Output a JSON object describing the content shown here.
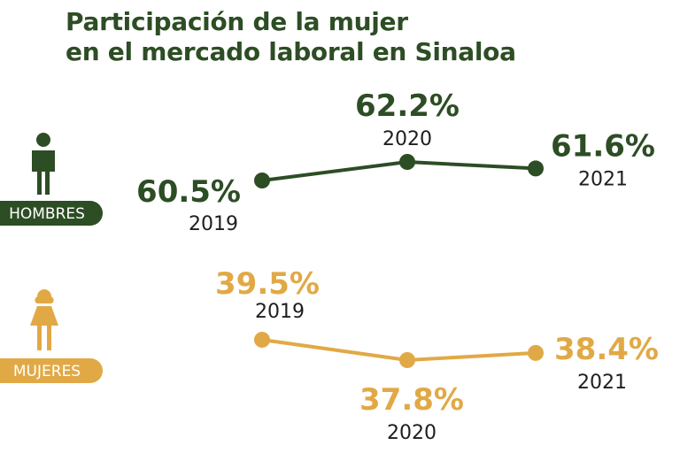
{
  "title": {
    "line1": "Participación de la mujer",
    "line2": "en el mercado laboral en Sinaloa"
  },
  "colors": {
    "title": "#2d4d24",
    "hombres": "#2d4d24",
    "mujeres": "#e1a946",
    "year_text": "#1e1e1e"
  },
  "icons": {
    "hombres": "man-icon",
    "mujeres": "woman-icon"
  },
  "chart_data": {
    "type": "line",
    "title": "Participación de la mujer en el mercado laboral en Sinaloa",
    "x": [
      "2019",
      "2020",
      "2021"
    ],
    "unit": "%",
    "series": [
      {
        "name": "HOMBRES",
        "values": [
          60.5,
          62.2,
          61.6
        ],
        "labels": [
          "60.5%",
          "62.2%",
          "61.6%"
        ],
        "years": [
          "2019",
          "2020",
          "2021"
        ]
      },
      {
        "name": "MUJERES",
        "values": [
          39.5,
          37.8,
          38.4
        ],
        "labels": [
          "39.5%",
          "37.8%",
          "38.4%"
        ],
        "years": [
          "2019",
          "2020",
          "2021"
        ]
      }
    ]
  }
}
